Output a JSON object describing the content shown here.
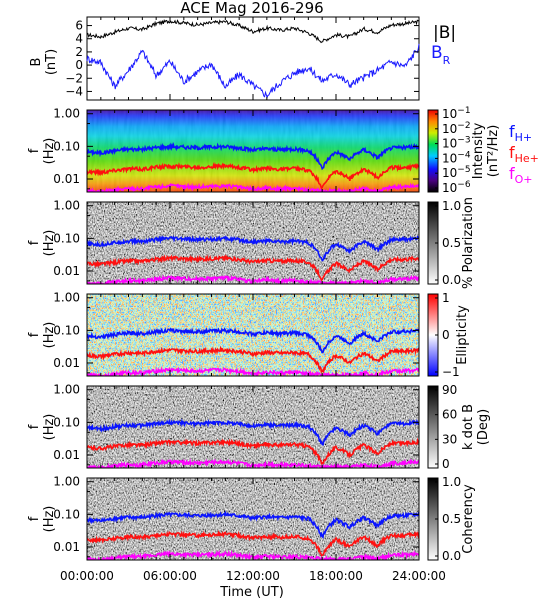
{
  "title": "ACE Mag 2016-296",
  "colors": {
    "total": "#000000",
    "br": "#1a1aff",
    "fh": "#0a14ff",
    "fhe": "#ff1010",
    "fo": "#ff00ff"
  },
  "xaxis": {
    "ticks": [
      "00:00:00",
      "06:00:00",
      "12:00:00",
      "18:00:00",
      "24:00:00"
    ],
    "label": "Time (UT)",
    "range_hours": [
      0,
      24
    ]
  },
  "panel1": {
    "ylabel1": "B",
    "ylabel2": "(nT)",
    "yticks": [
      "6",
      "4",
      "2",
      "0",
      "−2",
      "−4"
    ],
    "ylim": [
      -5.3,
      7.3
    ],
    "legend_total": "|B|",
    "legend_br_main": "B",
    "legend_br_sub": "R"
  },
  "spectro_ylabel": {
    "main": "f",
    "unit": "(Hz)"
  },
  "spectro_yticks": [
    "1.00",
    "0.10",
    "0.01"
  ],
  "spectro_ylim_hz": [
    0.004,
    1.3
  ],
  "panel2": {
    "cbar_ticks": [
      {
        "b": "10",
        "e": "−1"
      },
      {
        "b": "10",
        "e": "−2"
      },
      {
        "b": "10",
        "e": "−3"
      },
      {
        "b": "10",
        "e": "−4"
      },
      {
        "b": "10",
        "e": "−5"
      },
      {
        "b": "10",
        "e": "−6"
      }
    ],
    "cbar_label1": "Intensity",
    "cbar_label2": "(nT²/Hz)",
    "legend_h": {
      "main": "f",
      "sub": "H+"
    },
    "legend_he": {
      "main": "f",
      "sub": "He+"
    },
    "legend_o": {
      "main": "f",
      "sub": "O+"
    }
  },
  "panel3": {
    "cbar_ticks": [
      "1.0",
      "0.5",
      "0.0"
    ],
    "cbar_label": "% Polarization"
  },
  "panel4": {
    "cbar_ticks": [
      "1",
      "0",
      "−1"
    ],
    "cbar_label": "Ellipticity"
  },
  "panel5": {
    "cbar_ticks": [
      "90",
      "60",
      "30",
      "0"
    ],
    "cbar_label1": "k dot B",
    "cbar_label2": "(Deg)"
  },
  "panel6": {
    "cbar_ticks": [
      "1.0",
      "0.5",
      "0.0"
    ],
    "cbar_label": "Coherency"
  },
  "chart_data": [
    {
      "type": "line",
      "title": "ACE Mag 2016-296",
      "ylabel": "B (nT)",
      "xlabel": "Time (UT)",
      "ylim": [
        -5.3,
        7.3
      ],
      "x": [
        0,
        1,
        2,
        3,
        4,
        5,
        6,
        7,
        8,
        9,
        10,
        11,
        12,
        13,
        14,
        15,
        16,
        17,
        18,
        19,
        20,
        21,
        22,
        23,
        24
      ],
      "series": [
        {
          "name": "|B|",
          "values": [
            4.6,
            4.3,
            5.0,
            5.6,
            5.4,
            6.3,
            6.7,
            6.4,
            6.1,
            6.4,
            6.6,
            6.0,
            5.1,
            5.6,
            5.3,
            5.6,
            4.9,
            3.6,
            4.6,
            4.3,
            5.5,
            5.0,
            6.1,
            6.3,
            6.6
          ]
        },
        {
          "name": "B_R",
          "values": [
            1.0,
            0.4,
            -3.2,
            -0.8,
            2.1,
            -1.6,
            0.6,
            -2.5,
            -1.0,
            0.2,
            -3.3,
            -1.4,
            -3.1,
            -4.6,
            -2.6,
            -1.2,
            -0.4,
            -2.4,
            -1.3,
            -3.0,
            -1.9,
            -0.8,
            0.5,
            -0.2,
            2.8
          ]
        }
      ]
    },
    {
      "type": "line",
      "title": "",
      "ylabel": "f (Hz)",
      "xlabel": "Time (UT)",
      "yscale": "log",
      "x": [
        0,
        1,
        2,
        3,
        4,
        5,
        6,
        7,
        8,
        9,
        10,
        11,
        12,
        13,
        14,
        15,
        16,
        17,
        18,
        19,
        20,
        21,
        22,
        23,
        24
      ],
      "series": [
        {
          "name": "f_H+",
          "values": [
            0.068,
            0.063,
            0.074,
            0.082,
            0.081,
            0.092,
            0.099,
            0.095,
            0.091,
            0.096,
            0.099,
            0.09,
            0.077,
            0.085,
            0.079,
            0.084,
            0.074,
            0.02,
            0.068,
            0.04,
            0.08,
            0.045,
            0.09,
            0.093,
            0.1
          ]
        },
        {
          "name": "f_He+",
          "values": [
            0.017,
            0.016,
            0.0185,
            0.0205,
            0.02,
            0.023,
            0.025,
            0.024,
            0.023,
            0.024,
            0.025,
            0.0225,
            0.019,
            0.021,
            0.02,
            0.021,
            0.0185,
            0.005,
            0.017,
            0.01,
            0.02,
            0.011,
            0.0225,
            0.023,
            0.025
          ]
        },
        {
          "name": "f_O+",
          "values": [
            0.0043,
            0.004,
            0.0046,
            0.0051,
            0.005,
            0.0057,
            0.0062,
            0.0059,
            0.0057,
            0.006,
            0.0062,
            0.0056,
            0.0048,
            0.0053,
            0.0049,
            0.0052,
            0.0046,
            0.0043,
            0.0043,
            0.0043,
            0.005,
            0.0043,
            0.0056,
            0.0058,
            0.0062
          ]
        }
      ]
    }
  ]
}
